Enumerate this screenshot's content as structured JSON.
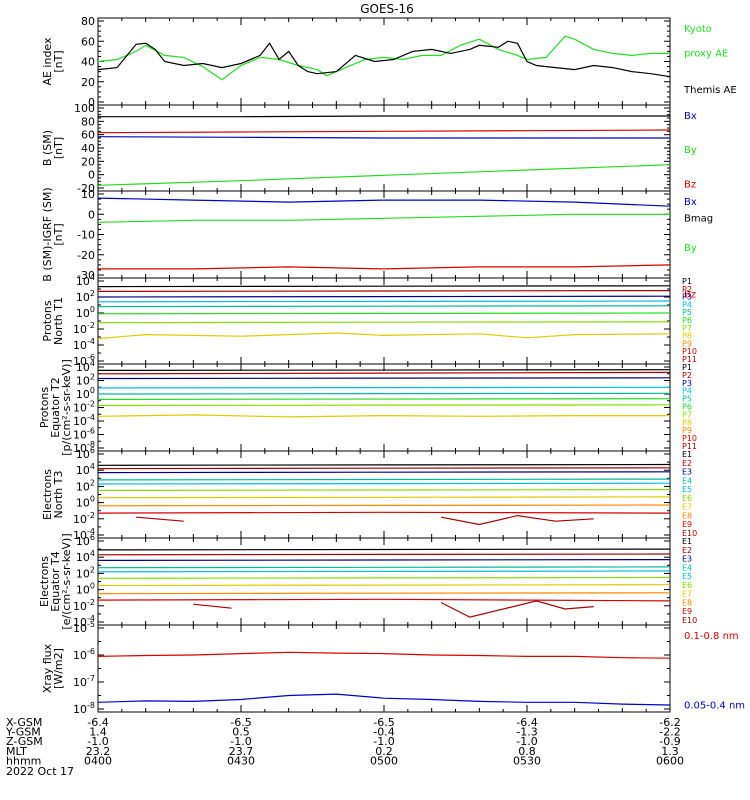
{
  "title": "GOES-16",
  "colors": {
    "black": "#000000",
    "blue": "#0000cc",
    "green": "#22dd22",
    "red": "#dd0000",
    "navy": "#000088",
    "cyan": "#00bbee",
    "teal": "#00bb99",
    "lime": "#88dd00",
    "yellow": "#ddcc00",
    "orange": "#ff8800",
    "darkred": "#aa0000"
  },
  "chart_data": [
    {
      "id": "ae",
      "type": "line",
      "ylabel": [
        "AE index",
        "[nT]"
      ],
      "ylim": [
        0,
        80
      ],
      "yscale": "linear",
      "yticks": [
        0,
        20,
        40,
        60,
        80
      ],
      "xlim": [
        0,
        120
      ],
      "series": [
        {
          "name": "Kyoto proxy AE",
          "label_lines": [
            "Kyoto",
            "proxy AE"
          ],
          "color": "green",
          "x": [
            0,
            4,
            8,
            10,
            14,
            18,
            22,
            26,
            30,
            34,
            38,
            42,
            46,
            48,
            52,
            56,
            60,
            64,
            68,
            72,
            76,
            80,
            84,
            88,
            90,
            94,
            98,
            100,
            104,
            108,
            112,
            116,
            120
          ],
          "y": [
            40,
            42,
            50,
            56,
            46,
            44,
            35,
            22,
            36,
            44,
            42,
            36,
            32,
            26,
            34,
            42,
            44,
            42,
            46,
            46,
            56,
            62,
            52,
            46,
            42,
            44,
            65,
            62,
            52,
            48,
            46,
            48,
            48
          ]
        },
        {
          "name": "Themis AE",
          "label_lines": [
            "Themis AE"
          ],
          "color": "black",
          "x": [
            0,
            4,
            8,
            10,
            12,
            14,
            18,
            22,
            26,
            30,
            34,
            36,
            38,
            40,
            42,
            44,
            46,
            50,
            54,
            58,
            62,
            66,
            70,
            74,
            78,
            80,
            84,
            86,
            88,
            90,
            92,
            96,
            100,
            104,
            108,
            112,
            116,
            120
          ],
          "y": [
            32,
            34,
            57,
            58,
            52,
            40,
            36,
            38,
            34,
            38,
            46,
            58,
            42,
            50,
            36,
            30,
            28,
            30,
            46,
            40,
            42,
            50,
            52,
            48,
            52,
            56,
            54,
            60,
            58,
            40,
            36,
            34,
            32,
            36,
            34,
            30,
            28,
            25
          ]
        }
      ]
    },
    {
      "id": "bsm",
      "type": "line",
      "ylabel": [
        "B (SM)",
        "[nT]"
      ],
      "ylim": [
        -20,
        100
      ],
      "yscale": "linear",
      "yticks": [
        -20,
        0,
        20,
        40,
        60,
        80,
        100
      ],
      "xlim": [
        0,
        120
      ],
      "series": [
        {
          "name": "Bx",
          "label_lines": [
            "Bx"
          ],
          "color": "blue",
          "x": [
            0,
            30,
            60,
            90,
            120
          ],
          "y": [
            57,
            56,
            55,
            55,
            55
          ]
        },
        {
          "name": "By",
          "label_lines": [
            "By"
          ],
          "color": "green",
          "x": [
            0,
            30,
            60,
            90,
            120
          ],
          "y": [
            -16,
            -9,
            -1,
            7,
            15
          ]
        },
        {
          "name": "Bz",
          "label_lines": [
            "Bz"
          ],
          "color": "red",
          "x": [
            0,
            30,
            60,
            90,
            120
          ],
          "y": [
            63,
            64,
            65,
            66,
            67
          ]
        },
        {
          "name": "Bmag",
          "label_lines": [
            "Bmag"
          ],
          "color": "black",
          "x": [
            0,
            30,
            60,
            90,
            120
          ],
          "y": [
            87,
            87,
            88,
            88,
            88
          ]
        }
      ]
    },
    {
      "id": "bigrf",
      "type": "line",
      "ylabel": [
        "B (SM)-IGRF (SM)",
        "[nT]"
      ],
      "ylim": [
        -30,
        10
      ],
      "yscale": "linear",
      "yticks": [
        -30,
        -20,
        -10,
        0,
        10
      ],
      "xlim": [
        0,
        120
      ],
      "series": [
        {
          "name": "Bx",
          "label_lines": [
            "Bx"
          ],
          "color": "blue",
          "x": [
            0,
            20,
            40,
            60,
            80,
            100,
            120
          ],
          "y": [
            8,
            7,
            6,
            7,
            7,
            6,
            4
          ]
        },
        {
          "name": "By",
          "label_lines": [
            "By"
          ],
          "color": "green",
          "x": [
            0,
            20,
            40,
            60,
            80,
            100,
            120
          ],
          "y": [
            -4,
            -3,
            -3,
            -2,
            -1,
            0,
            0
          ]
        },
        {
          "name": "Bz",
          "label_lines": [
            "Bz"
          ],
          "color": "red",
          "x": [
            0,
            20,
            40,
            60,
            80,
            100,
            120
          ],
          "y": [
            -27,
            -27,
            -26,
            -27,
            -26,
            -26,
            -25
          ]
        }
      ]
    },
    {
      "id": "protons-t1",
      "type": "line",
      "ylabel": [
        "Protons",
        "North T1"
      ],
      "ylim": [
        -6,
        4
      ],
      "yscale": "log",
      "yticks": [
        -6,
        -4,
        -2,
        0,
        2,
        4
      ],
      "xlim": [
        0,
        120
      ],
      "series": [
        {
          "name": "P1",
          "color": "black",
          "x": [
            0,
            120
          ],
          "y": [
            3.3,
            3.4
          ]
        },
        {
          "name": "P2",
          "color": "darkred",
          "x": [
            0,
            120
          ],
          "y": [
            2.7,
            2.8
          ]
        },
        {
          "name": "P3",
          "color": "navy",
          "x": [
            0,
            120
          ],
          "y": [
            2.0,
            2.1
          ]
        },
        {
          "name": "P4",
          "color": "cyan",
          "x": [
            0,
            120
          ],
          "y": [
            1.4,
            1.5
          ]
        },
        {
          "name": "P5",
          "color": "teal",
          "x": [
            0,
            120
          ],
          "y": [
            0.8,
            0.9
          ]
        },
        {
          "name": "P6",
          "color": "green",
          "x": [
            0,
            120
          ],
          "y": [
            -0.1,
            0
          ]
        },
        {
          "name": "P7",
          "color": "lime",
          "x": [
            0,
            120
          ],
          "y": [
            -1.2,
            -1.1
          ]
        },
        {
          "name": "P8",
          "color": "yellow",
          "x": [
            0,
            10,
            30,
            50,
            60,
            80,
            90,
            100,
            120
          ],
          "y": [
            -3.2,
            -2.7,
            -2.9,
            -2.5,
            -2.8,
            -2.6,
            -3.1,
            -2.7,
            -2.6
          ]
        },
        {
          "name": "P9",
          "color": "orange",
          "x": [],
          "y": []
        },
        {
          "name": "P10",
          "color": "red",
          "x": [],
          "y": []
        },
        {
          "name": "P11",
          "color": "darkred",
          "x": [],
          "y": []
        }
      ]
    },
    {
      "id": "protons-t2",
      "type": "line",
      "ylabel": [
        "Protons",
        "Equator T2",
        "[p/(cm²-s-sr-keV)]"
      ],
      "ylim": [
        -8,
        4
      ],
      "yscale": "log",
      "yticks": [
        -8,
        -6,
        -4,
        -2,
        0,
        2,
        4
      ],
      "xlim": [
        0,
        120
      ],
      "series": [
        {
          "name": "P1",
          "color": "black",
          "x": [
            0,
            120
          ],
          "y": [
            3.5,
            3.6
          ]
        },
        {
          "name": "P2",
          "color": "darkred",
          "x": [
            0,
            120
          ],
          "y": [
            3.0,
            3.2
          ]
        },
        {
          "name": "P3",
          "color": "navy",
          "x": [
            0,
            120
          ],
          "y": [
            2.3,
            2.4
          ]
        },
        {
          "name": "P4",
          "color": "cyan",
          "x": [
            0,
            120
          ],
          "y": [
            0.9,
            1.0
          ]
        },
        {
          "name": "P5",
          "color": "teal",
          "x": [
            0,
            120
          ],
          "y": [
            0.0,
            0.1
          ]
        },
        {
          "name": "P6",
          "color": "green",
          "x": [
            0,
            120
          ],
          "y": [
            -0.8,
            -0.7
          ]
        },
        {
          "name": "P7",
          "color": "lime",
          "x": [
            0,
            120
          ],
          "y": [
            -1.7,
            -1.6
          ]
        },
        {
          "name": "P8",
          "color": "yellow",
          "x": [
            0,
            20,
            40,
            60,
            80,
            100,
            120
          ],
          "y": [
            -3.3,
            -3.1,
            -3.4,
            -3.2,
            -3.3,
            -3.2,
            -3.2
          ]
        },
        {
          "name": "P9",
          "color": "orange",
          "x": [],
          "y": []
        },
        {
          "name": "P10",
          "color": "red",
          "x": [],
          "y": []
        },
        {
          "name": "P11",
          "color": "darkred",
          "x": [],
          "y": []
        }
      ]
    },
    {
      "id": "electrons-t3",
      "type": "line",
      "ylabel": [
        "Electrons",
        "North T3"
      ],
      "ylim": [
        -4,
        6
      ],
      "yscale": "log",
      "yticks": [
        -4,
        -2,
        0,
        2,
        4,
        6
      ],
      "xlim": [
        0,
        120
      ],
      "series": [
        {
          "name": "E1",
          "color": "black",
          "x": [
            0,
            120
          ],
          "y": [
            4.6,
            4.7
          ]
        },
        {
          "name": "E2",
          "color": "darkred",
          "x": [
            0,
            120
          ],
          "y": [
            4.2,
            4.3
          ]
        },
        {
          "name": "E3",
          "color": "navy",
          "x": [
            0,
            120
          ],
          "y": [
            3.7,
            3.8
          ]
        },
        {
          "name": "E4",
          "color": "teal",
          "x": [
            0,
            120
          ],
          "y": [
            2.8,
            2.9
          ]
        },
        {
          "name": "E5",
          "color": "cyan",
          "x": [
            0,
            120
          ],
          "y": [
            2.3,
            2.4
          ]
        },
        {
          "name": "E6",
          "color": "lime",
          "x": [
            0,
            120
          ],
          "y": [
            1.5,
            1.6
          ]
        },
        {
          "name": "E7",
          "color": "yellow",
          "x": [
            0,
            120
          ],
          "y": [
            0.6,
            0.7
          ]
        },
        {
          "name": "E8",
          "color": "orange",
          "x": [
            0,
            120
          ],
          "y": [
            -0.4,
            -0.3
          ]
        },
        {
          "name": "E9",
          "color": "red",
          "x": [
            0,
            60,
            120
          ],
          "y": [
            -1.3,
            -1.2,
            -1.3
          ]
        },
        {
          "name": "E10",
          "color": "darkred",
          "x": [
            8,
            18,
            null,
            72,
            80,
            88,
            96,
            104
          ],
          "y": [
            -1.8,
            -2.3,
            null,
            -1.8,
            -2.7,
            -1.6,
            -2.3,
            -2.0
          ]
        }
      ]
    },
    {
      "id": "electrons-t4",
      "type": "line",
      "ylabel": [
        "Electrons",
        "Equator T4",
        "[e/(cm²-s-sr-keV)]"
      ],
      "ylim": [
        -4,
        6
      ],
      "yscale": "log",
      "yticks": [
        -4,
        -2,
        0,
        2,
        4,
        6
      ],
      "xlim": [
        0,
        120
      ],
      "series": [
        {
          "name": "E1",
          "color": "black",
          "x": [
            0,
            120
          ],
          "y": [
            4.9,
            5.0
          ]
        },
        {
          "name": "E2",
          "color": "darkred",
          "x": [
            0,
            120
          ],
          "y": [
            4.3,
            4.4
          ]
        },
        {
          "name": "E3",
          "color": "navy",
          "x": [
            0,
            120
          ],
          "y": [
            3.6,
            3.7
          ]
        },
        {
          "name": "E4",
          "color": "teal",
          "x": [
            0,
            120
          ],
          "y": [
            2.7,
            2.8
          ]
        },
        {
          "name": "E5",
          "color": "cyan",
          "x": [
            0,
            120
          ],
          "y": [
            2.2,
            2.3
          ]
        },
        {
          "name": "E6",
          "color": "lime",
          "x": [
            0,
            120
          ],
          "y": [
            1.4,
            1.5
          ]
        },
        {
          "name": "E7",
          "color": "yellow",
          "x": [
            0,
            120
          ],
          "y": [
            0.5,
            0.6
          ]
        },
        {
          "name": "E8",
          "color": "orange",
          "x": [
            0,
            120
          ],
          "y": [
            -0.5,
            -0.4
          ]
        },
        {
          "name": "E9",
          "color": "red",
          "x": [
            0,
            60,
            120
          ],
          "y": [
            -1.3,
            -1.2,
            -1.4
          ]
        },
        {
          "name": "E10",
          "color": "darkred",
          "x": [
            20,
            28,
            null,
            72,
            78,
            92,
            98,
            104
          ],
          "y": [
            -1.8,
            -2.3,
            null,
            -1.6,
            -3.4,
            -1.4,
            -2.4,
            -2.1
          ]
        }
      ]
    },
    {
      "id": "xray",
      "type": "line",
      "ylabel": [
        "Xray flux",
        "[W/m2]"
      ],
      "ylim": [
        -8,
        -5
      ],
      "yscale": "log",
      "yticks": [
        -8,
        -7,
        -6,
        -5
      ],
      "xlim": [
        0,
        120
      ],
      "series": [
        {
          "name": "0.1-0.8 nm",
          "label_lines": [
            "0.1-0.8 nm"
          ],
          "color": "red",
          "x": [
            0,
            10,
            20,
            30,
            40,
            50,
            60,
            70,
            80,
            90,
            100,
            110,
            120
          ],
          "y": [
            -6.05,
            -6.02,
            -6.0,
            -5.95,
            -5.9,
            -5.93,
            -5.95,
            -6.0,
            -6.02,
            -6.05,
            -6.05,
            -6.1,
            -6.12
          ]
        },
        {
          "name": "0.05-0.4 nm",
          "label_lines": [
            "0.05-0.4 nm"
          ],
          "color": "blue",
          "x": [
            0,
            10,
            20,
            30,
            40,
            50,
            60,
            70,
            80,
            90,
            100,
            110,
            120
          ],
          "y": [
            -7.75,
            -7.7,
            -7.72,
            -7.65,
            -7.5,
            -7.45,
            -7.6,
            -7.65,
            -7.72,
            -7.75,
            -7.75,
            -7.82,
            -7.85
          ]
        }
      ]
    }
  ],
  "xaxis": {
    "tick_positions": [
      0,
      30,
      60,
      90,
      120
    ],
    "rows": [
      {
        "name": "X-GSM",
        "values": [
          "-6.4",
          "-6.5",
          "-6.5",
          "-6.4",
          "-6.2"
        ]
      },
      {
        "name": "Y-GSM",
        "values": [
          "1.4",
          "0.5",
          "-0.4",
          "-1.3",
          "-2.2"
        ]
      },
      {
        "name": "Z-GSM",
        "values": [
          "-1.0",
          "-1.0",
          "-1.0",
          "-1.0",
          "-0.9"
        ]
      },
      {
        "name": "MLT",
        "values": [
          "23.2",
          "23.7",
          "0.2",
          "0.8",
          "1.3"
        ]
      },
      {
        "name": "hhmm",
        "values": [
          "0400",
          "0430",
          "0500",
          "0530",
          "0600"
        ]
      }
    ],
    "date": "2022 Oct 17"
  }
}
